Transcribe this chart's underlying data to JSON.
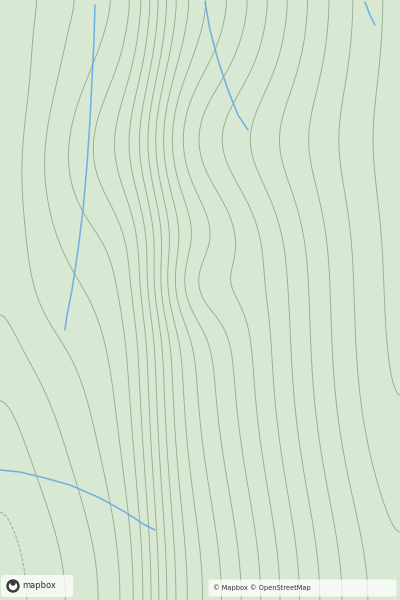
{
  "background_color": "#d8e8d2",
  "contour_color": "#8fa88a",
  "contour_linewidth": 0.65,
  "river_color": "#6aade4",
  "river_linewidth": 1.1,
  "figsize": [
    4.0,
    6.0
  ],
  "dpi": 100,
  "n_contours": 22,
  "mapbox_text": "mapbox",
  "osm_text": "© Mapbox © OpenStreetMap"
}
